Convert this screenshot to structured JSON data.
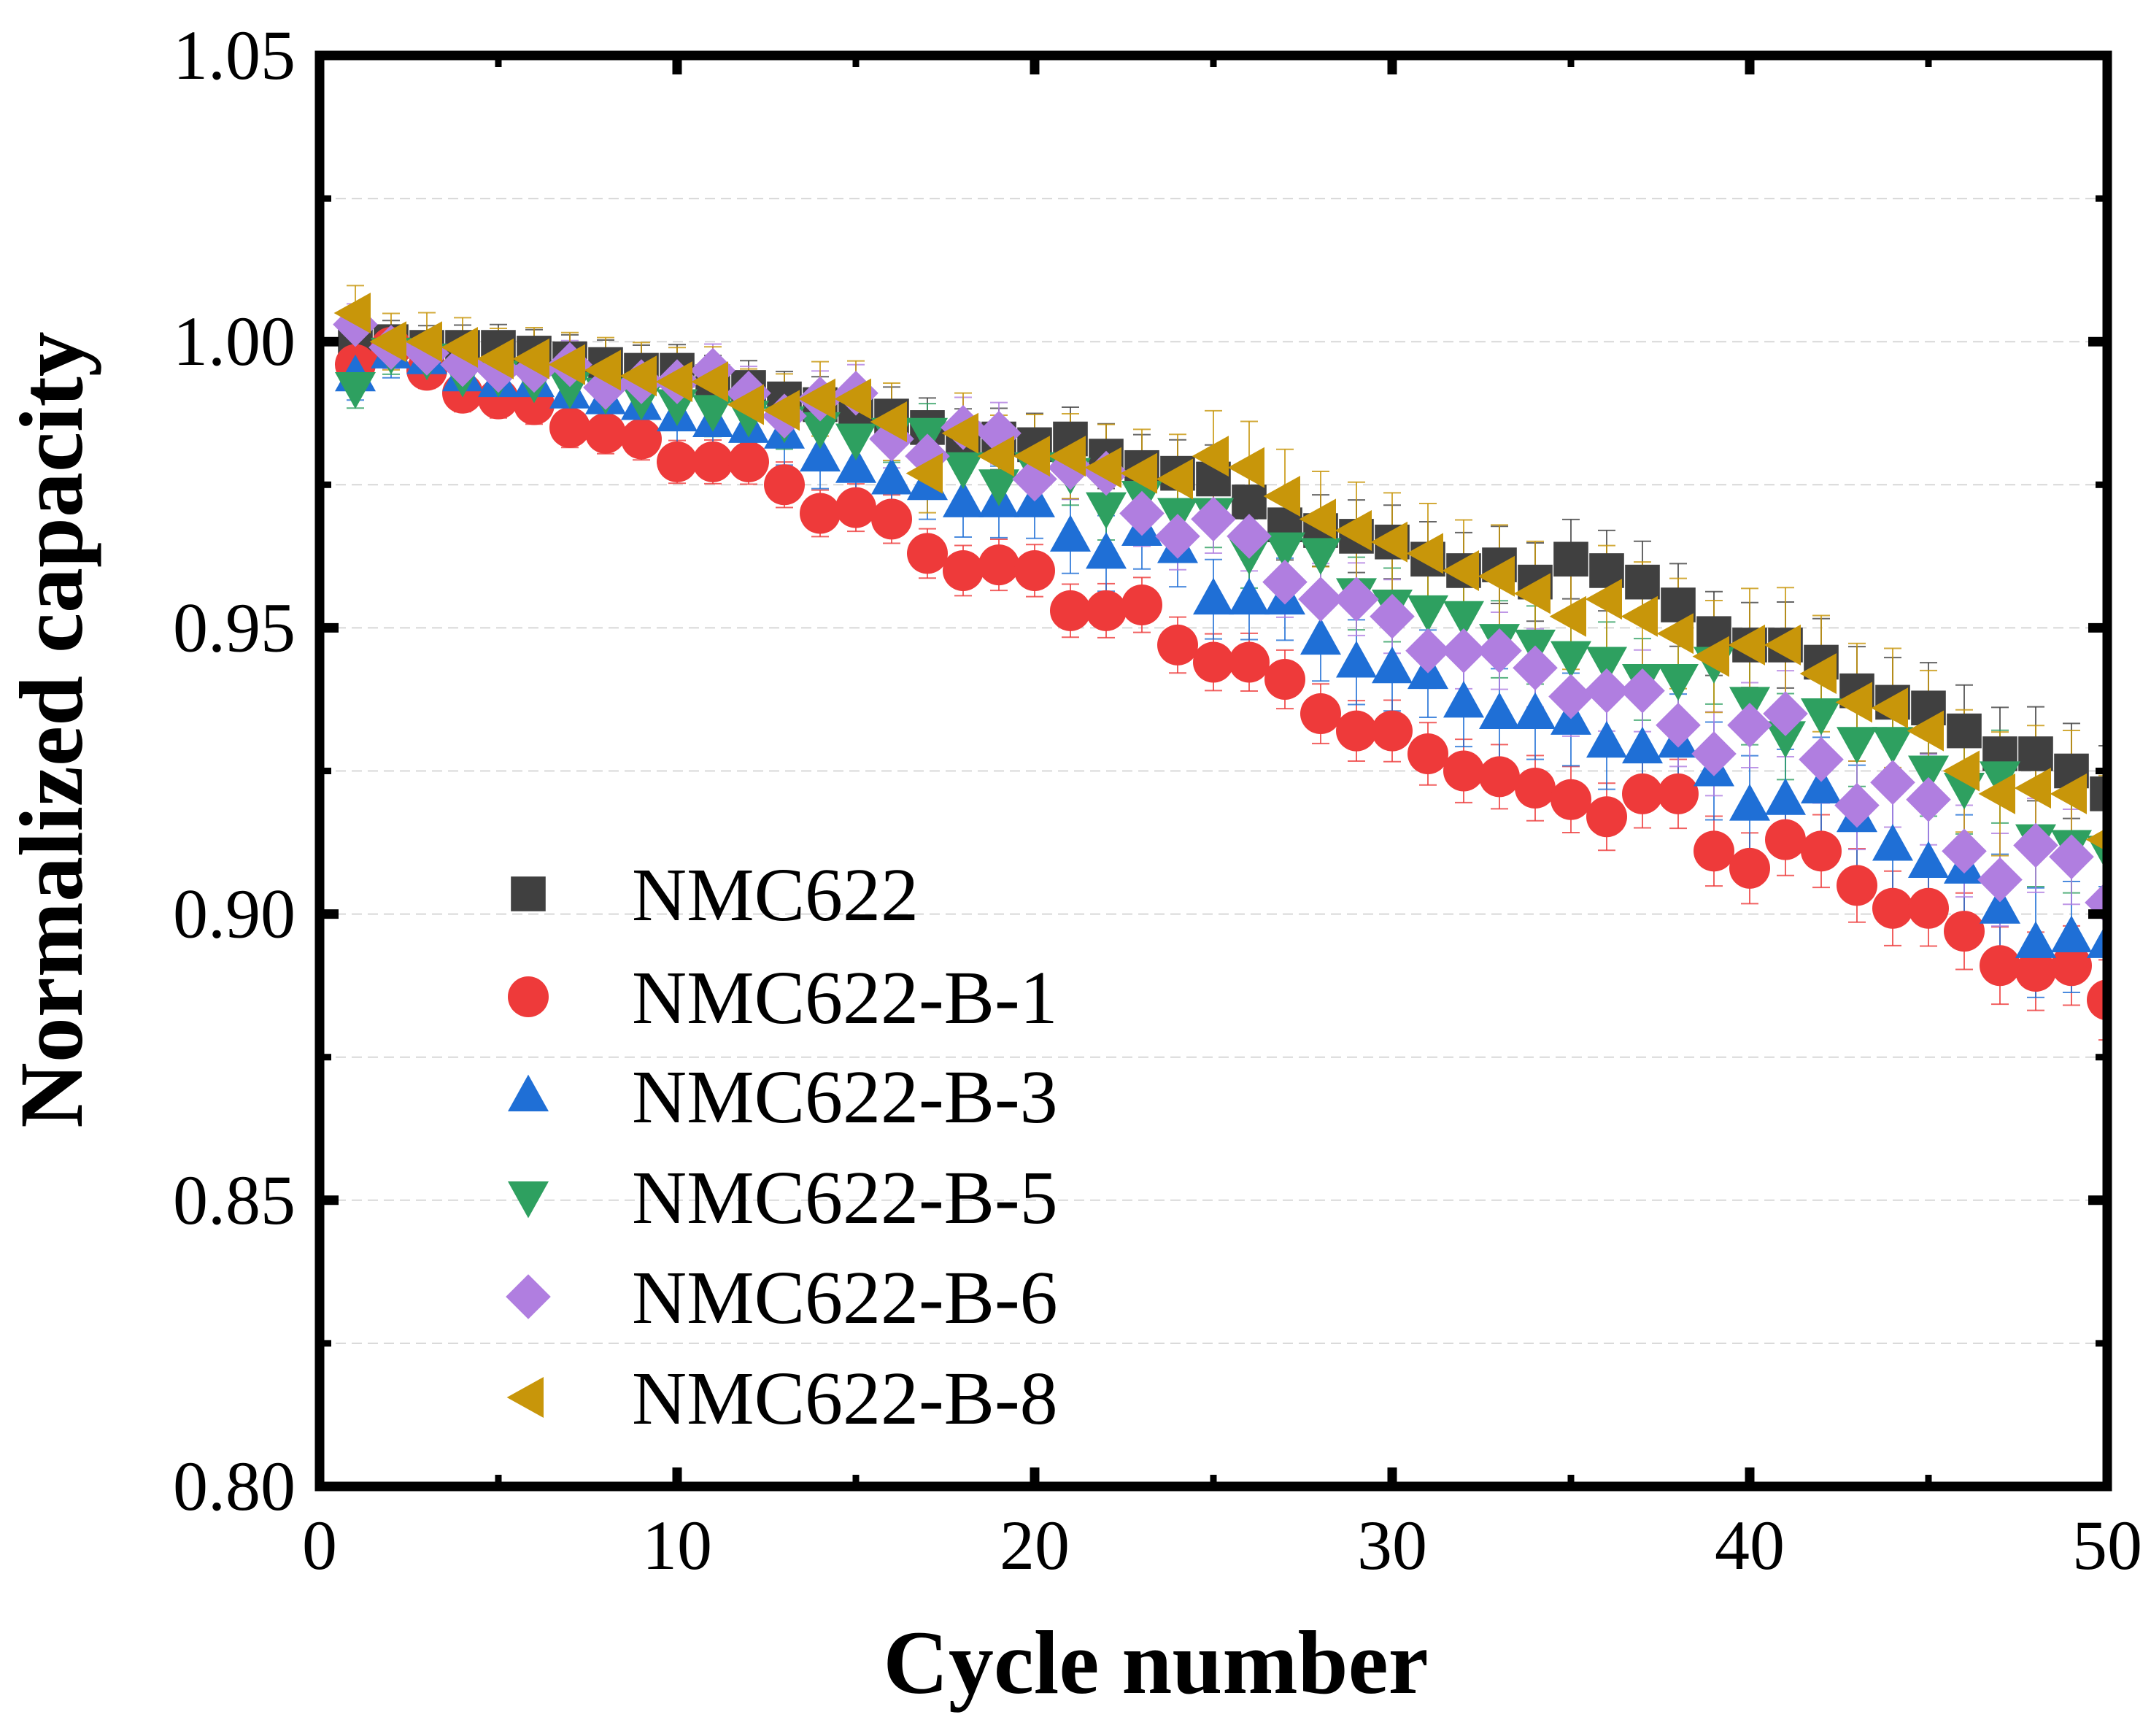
{
  "chart_data": {
    "type": "scatter",
    "xlabel": "Cycle number",
    "ylabel": "Normalized capacity",
    "xlim": [
      0,
      50
    ],
    "ylim": [
      0.8,
      1.05
    ],
    "xticks": [
      "0",
      "10",
      "20",
      "30",
      "40",
      "50"
    ],
    "yticks": [
      "0.80",
      "0.85",
      "0.90",
      "0.95",
      "1.00",
      "1.05"
    ],
    "grid": true,
    "legend_position": "bottom-left",
    "series": [
      {
        "name": "NMC622",
        "marker": "square",
        "color": "#404040",
        "err": 0.006,
        "values": [
          1.0,
          1.0,
          0.999,
          0.999,
          0.999,
          0.998,
          0.997,
          0.996,
          0.995,
          0.995,
          0.993,
          0.992,
          0.99,
          0.989,
          0.988,
          0.987,
          0.985,
          0.983,
          0.983,
          0.982,
          0.983,
          0.98,
          0.978,
          0.977,
          0.976,
          0.972,
          0.968,
          0.967,
          0.966,
          0.965,
          0.962,
          0.96,
          0.961,
          0.958,
          0.962,
          0.96,
          0.958,
          0.954,
          0.949,
          0.947,
          0.947,
          0.944,
          0.939,
          0.937,
          0.936,
          0.932,
          0.928,
          0.928,
          0.925,
          0.921
        ]
      },
      {
        "name": "NMC622-B-1",
        "marker": "circle",
        "color": "#ee3a3a",
        "err": 0.005,
        "values": [
          0.996,
          0.999,
          0.995,
          0.991,
          0.99,
          0.989,
          0.985,
          0.984,
          0.983,
          0.979,
          0.979,
          0.979,
          0.975,
          0.97,
          0.971,
          0.969,
          0.963,
          0.96,
          0.961,
          0.96,
          0.953,
          0.953,
          0.954,
          0.947,
          0.944,
          0.944,
          0.941,
          0.935,
          0.932,
          0.932,
          0.928,
          0.925,
          0.924,
          0.922,
          0.92,
          0.917,
          0.921,
          0.921,
          0.911,
          0.908,
          0.913,
          0.911,
          0.905,
          0.901,
          0.901,
          0.897,
          0.891,
          0.89,
          0.891,
          0.885
        ]
      },
      {
        "name": "NMC622-B-3",
        "marker": "triangle-up",
        "color": "#1f6fd6",
        "err": 0.007,
        "values": [
          0.994,
          0.998,
          0.997,
          0.994,
          0.993,
          0.993,
          0.991,
          0.99,
          0.989,
          0.987,
          0.986,
          0.985,
          0.984,
          0.98,
          0.978,
          0.976,
          0.975,
          0.972,
          0.972,
          0.972,
          0.966,
          0.963,
          0.967,
          0.964,
          0.955,
          0.955,
          0.955,
          0.948,
          0.944,
          0.943,
          0.942,
          0.937,
          0.935,
          0.935,
          0.934,
          0.93,
          0.929,
          0.93,
          0.925,
          0.919,
          0.92,
          0.922,
          0.917,
          0.912,
          0.909,
          0.908,
          0.901,
          0.895,
          0.896,
          0.895
        ]
      },
      {
        "name": "NMC622-B-5",
        "marker": "triangle-down",
        "color": "#2ea060",
        "err": 0.006,
        "values": [
          0.992,
          0.998,
          0.997,
          0.994,
          0.994,
          0.993,
          0.992,
          0.991,
          0.99,
          0.989,
          0.988,
          0.987,
          0.986,
          0.985,
          0.983,
          0.984,
          0.984,
          0.978,
          0.975,
          0.978,
          0.977,
          0.971,
          0.973,
          0.97,
          0.97,
          0.963,
          0.964,
          0.963,
          0.956,
          0.954,
          0.953,
          0.952,
          0.948,
          0.947,
          0.945,
          0.944,
          0.941,
          0.941,
          0.944,
          0.937,
          0.931,
          0.935,
          0.93,
          0.93,
          0.925,
          0.922,
          0.924,
          0.913,
          0.912,
          0.911
        ]
      },
      {
        "name": "NMC622-B-6",
        "marker": "diamond",
        "color": "#b07ee0",
        "err": 0.006,
        "values": [
          1.003,
          0.999,
          0.998,
          0.996,
          0.995,
          0.995,
          0.996,
          0.992,
          0.993,
          0.993,
          0.995,
          0.991,
          0.987,
          0.99,
          0.991,
          0.983,
          0.98,
          0.985,
          0.984,
          0.976,
          0.978,
          0.977,
          0.97,
          0.966,
          0.969,
          0.966,
          0.958,
          0.955,
          0.955,
          0.952,
          0.946,
          0.946,
          0.946,
          0.943,
          0.938,
          0.939,
          0.939,
          0.933,
          0.928,
          0.933,
          0.935,
          0.927,
          0.919,
          0.923,
          0.92,
          0.911,
          0.906,
          0.912,
          0.91,
          0.902
        ]
      },
      {
        "name": "NMC622-B-8",
        "marker": "triangle-left",
        "color": "#c8960a",
        "err": 0.008,
        "values": [
          1.005,
          1.0,
          1.0,
          0.999,
          0.997,
          0.997,
          0.996,
          0.995,
          0.994,
          0.993,
          0.993,
          0.989,
          0.988,
          0.99,
          0.99,
          0.986,
          0.977,
          0.984,
          0.98,
          0.98,
          0.98,
          0.978,
          0.977,
          0.976,
          0.98,
          0.978,
          0.973,
          0.969,
          0.967,
          0.965,
          0.963,
          0.96,
          0.959,
          0.956,
          0.952,
          0.955,
          0.952,
          0.949,
          0.945,
          0.947,
          0.947,
          0.942,
          0.937,
          0.936,
          0.932,
          0.925,
          0.921,
          0.922,
          0.921,
          0.913
        ]
      }
    ]
  }
}
